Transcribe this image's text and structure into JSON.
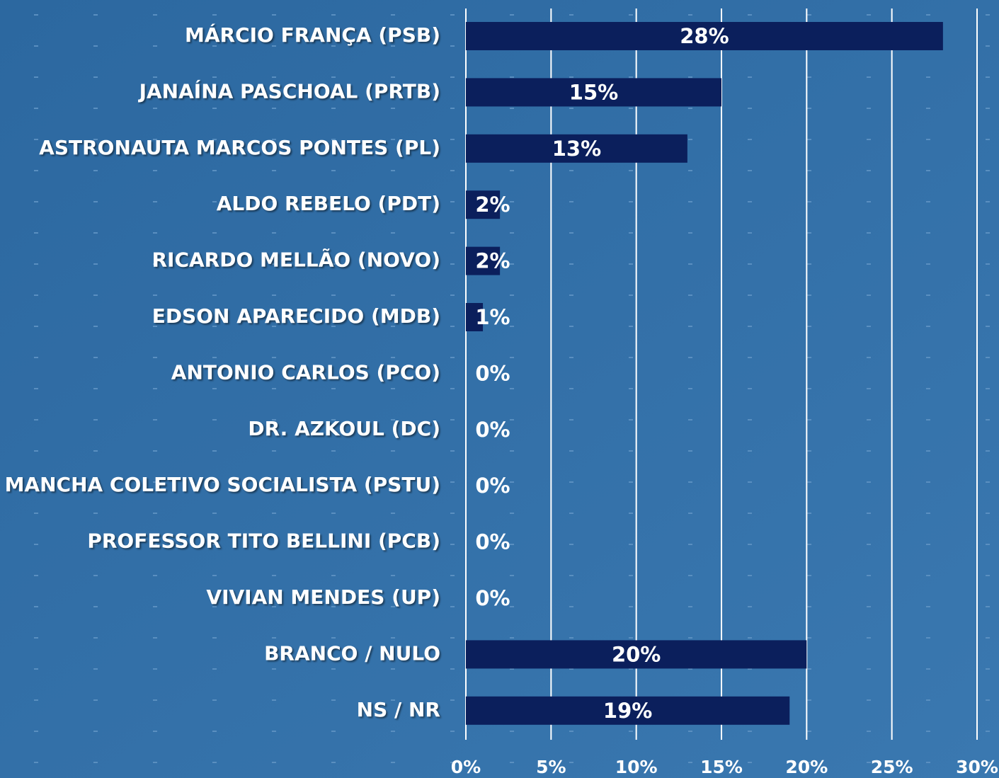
{
  "chart_data": {
    "type": "bar",
    "orientation": "horizontal",
    "categories": [
      "MÁRCIO FRANÇA (PSB)",
      "JANAÍNA PASCHOAL (PRTB)",
      "ASTRONAUTA MARCOS PONTES (PL)",
      "ALDO REBELO (PDT)",
      "RICARDO MELLÃO (NOVO)",
      "EDSON APARECIDO (MDB)",
      "ANTONIO CARLOS (PCO)",
      "DR. AZKOUL (DC)",
      "MANCHA COLETIVO SOCIALISTA (PSTU)",
      "PROFESSOR TITO BELLINI (PCB)",
      "VIVIAN MENDES (UP)",
      "BRANCO / NULO",
      "NS / NR"
    ],
    "values": [
      28,
      15,
      13,
      2,
      2,
      1,
      0,
      0,
      0,
      0,
      0,
      20,
      19
    ],
    "value_labels": [
      "28%",
      "15%",
      "13%",
      "2%",
      "2%",
      "1%",
      "0%",
      "0%",
      "0%",
      "0%",
      "0%",
      "20%",
      "19%"
    ],
    "color": "#0b1f5c",
    "xlim": [
      0,
      30
    ],
    "xticks": [
      {
        "value": 0,
        "label": "0%"
      },
      {
        "value": 5,
        "label": "5%"
      },
      {
        "value": 10,
        "label": "10%"
      },
      {
        "value": 15,
        "label": "15%"
      },
      {
        "value": 20,
        "label": "20%"
      },
      {
        "value": 25,
        "label": "25%"
      },
      {
        "value": 30,
        "label": "30%"
      }
    ],
    "grid": true
  }
}
